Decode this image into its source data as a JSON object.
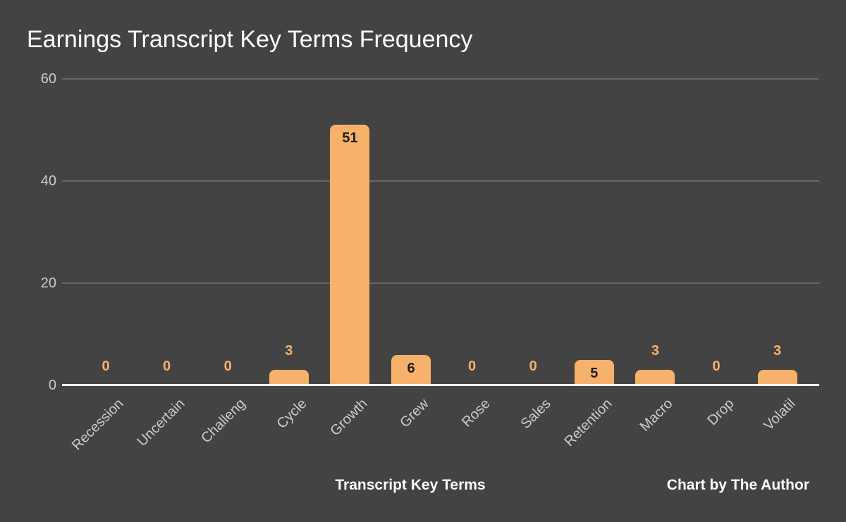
{
  "chart_data": {
    "type": "bar",
    "title": "Earnings Transcript Key Terms Frequency",
    "categories": [
      "Recession",
      "Uncertain",
      "Challeng",
      "Cycle",
      "Growth",
      "Grew",
      "Rose",
      "Sales",
      "Retention",
      "Macro",
      "Drop",
      "Volatil"
    ],
    "values": [
      0,
      0,
      0,
      3,
      51,
      6,
      0,
      0,
      5,
      3,
      0,
      3
    ],
    "xlabel": "Transcript Key Terms",
    "ylabel": "",
    "ylim": [
      0,
      60
    ],
    "yticks": [
      0,
      20,
      40,
      60
    ],
    "grid": true,
    "legend_position": "none",
    "annotations": "each bar labeled with its value; labels inside tall bars (dark text), above short/zero bars (orange text)"
  },
  "footer": {
    "x_axis_title": "Transcript Key Terms",
    "credit": "Chart by The Author"
  },
  "colors": {
    "background": "#434343",
    "bar_fill": "#f6b26b",
    "annotation_inside": "#1f1f1f",
    "annotation_above": "#f6b26b",
    "gridline": "#666666",
    "axis_baseline": "#ffffff",
    "tick_label": "#cccccc",
    "title_text": "#ffffff",
    "footer_text": "#ffffff"
  }
}
